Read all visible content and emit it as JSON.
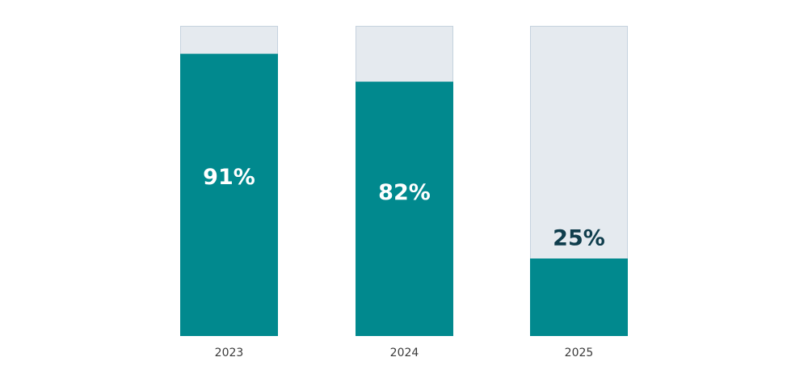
{
  "colors": {
    "fill": "#01898e",
    "track": "#e5eaef",
    "track_border": "#c5d2de",
    "label_inside": "#ffffff",
    "label_outside": "#0f3d4c",
    "category_text": "#3a3a3a"
  },
  "chart_data": {
    "type": "bar",
    "categories": [
      "2023",
      "2024",
      "2025"
    ],
    "values": [
      91,
      82,
      25
    ],
    "value_labels": [
      "91%",
      "82%",
      "25%"
    ],
    "ylim": [
      0,
      100
    ],
    "grid": false,
    "legend": "none"
  }
}
